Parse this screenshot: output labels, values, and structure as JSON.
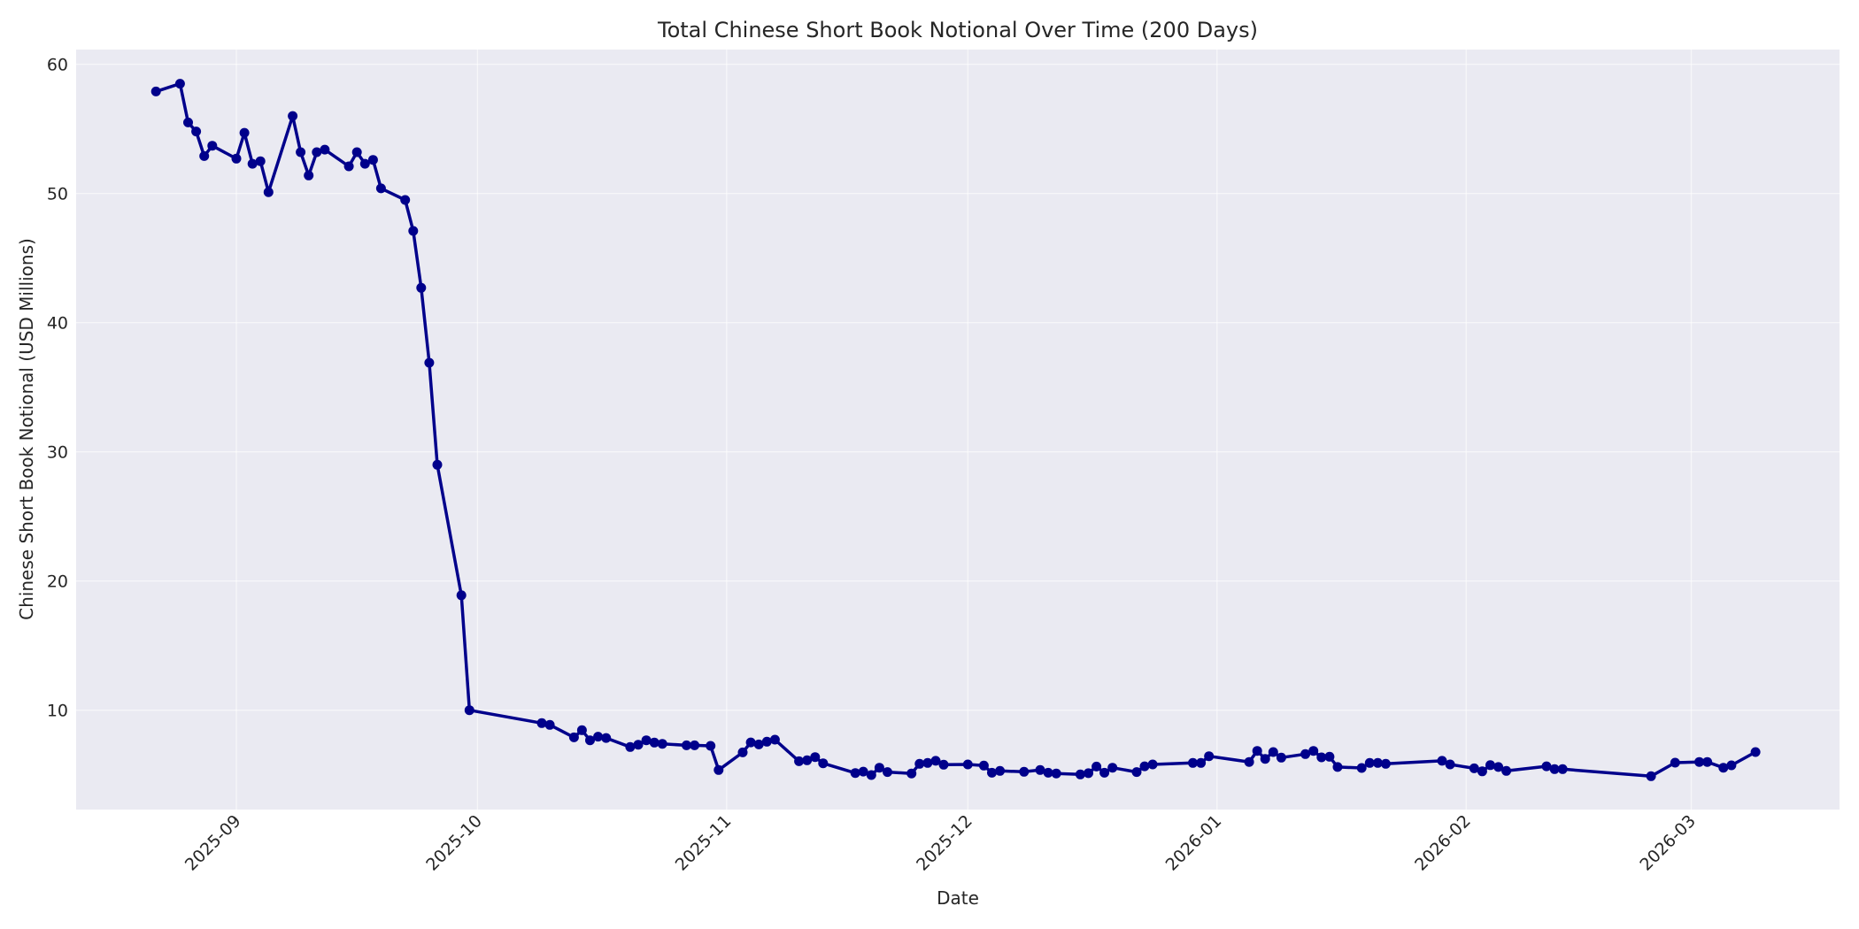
{
  "chart_data": {
    "type": "line",
    "title": "Total Chinese Short Book Notional Over Time (200 Days)",
    "xlabel": "Date",
    "ylabel": "Chinese Short Book Notional (USD Millions)",
    "ylim": [
      2.3,
      61.1
    ],
    "xlim": [
      "2025-08-12",
      "2026-03-19"
    ],
    "yticks": [
      10,
      20,
      30,
      40,
      50,
      60
    ],
    "xticks": [
      "2025-09",
      "2025-10",
      "2025-11",
      "2025-12",
      "2026-01",
      "2026-02",
      "2026-03"
    ],
    "xtick_dates": [
      "2025-09-01",
      "2025-10-01",
      "2025-11-01",
      "2025-12-01",
      "2026-01-01",
      "2026-02-01",
      "2026-03-01"
    ],
    "grid": true,
    "legend": null,
    "colors": {
      "line": "#00008b",
      "plot_bg": "#eaeaf2",
      "grid": "#ffffff"
    },
    "series": [
      {
        "name": "Chinese Short Book Notional",
        "points": [
          [
            "2025-08-22",
            57.9
          ],
          [
            "2025-08-25",
            58.5
          ],
          [
            "2025-08-26",
            55.5
          ],
          [
            "2025-08-27",
            54.8
          ],
          [
            "2025-08-28",
            52.9
          ],
          [
            "2025-08-29",
            53.7
          ],
          [
            "2025-09-01",
            52.7
          ],
          [
            "2025-09-02",
            54.7
          ],
          [
            "2025-09-03",
            52.3
          ],
          [
            "2025-09-04",
            52.5
          ],
          [
            "2025-09-05",
            50.1
          ],
          [
            "2025-09-08",
            56.0
          ],
          [
            "2025-09-09",
            53.2
          ],
          [
            "2025-09-10",
            51.4
          ],
          [
            "2025-09-11",
            53.2
          ],
          [
            "2025-09-12",
            53.4
          ],
          [
            "2025-09-15",
            52.1
          ],
          [
            "2025-09-16",
            53.2
          ],
          [
            "2025-09-17",
            52.3
          ],
          [
            "2025-09-18",
            52.6
          ],
          [
            "2025-09-19",
            50.4
          ],
          [
            "2025-09-22",
            49.5
          ],
          [
            "2025-09-23",
            47.1
          ],
          [
            "2025-09-24",
            42.7
          ],
          [
            "2025-09-25",
            36.9
          ],
          [
            "2025-09-26",
            29.0
          ],
          [
            "2025-09-29",
            18.9
          ],
          [
            "2025-09-30",
            10.0
          ],
          [
            "2025-10-09",
            9.0
          ],
          [
            "2025-10-10",
            8.86
          ],
          [
            "2025-10-13",
            7.9
          ],
          [
            "2025-10-14",
            8.45
          ],
          [
            "2025-10-15",
            7.67
          ],
          [
            "2025-10-16",
            7.95
          ],
          [
            "2025-10-17",
            7.85
          ],
          [
            "2025-10-20",
            7.15
          ],
          [
            "2025-10-21",
            7.33
          ],
          [
            "2025-10-22",
            7.67
          ],
          [
            "2025-10-23",
            7.49
          ],
          [
            "2025-10-24",
            7.4
          ],
          [
            "2025-10-27",
            7.28
          ],
          [
            "2025-10-28",
            7.28
          ],
          [
            "2025-10-30",
            7.24
          ],
          [
            "2025-10-31",
            5.37
          ],
          [
            "2025-11-03",
            6.73
          ],
          [
            "2025-11-04",
            7.51
          ],
          [
            "2025-11-05",
            7.35
          ],
          [
            "2025-11-06",
            7.56
          ],
          [
            "2025-11-07",
            7.72
          ],
          [
            "2025-11-10",
            6.05
          ],
          [
            "2025-11-11",
            6.12
          ],
          [
            "2025-11-12",
            6.37
          ],
          [
            "2025-11-13",
            5.89
          ],
          [
            "2025-11-17",
            5.14
          ],
          [
            "2025-11-18",
            5.25
          ],
          [
            "2025-11-19",
            4.98
          ],
          [
            "2025-11-20",
            5.55
          ],
          [
            "2025-11-21",
            5.21
          ],
          [
            "2025-11-24",
            5.1
          ],
          [
            "2025-11-25",
            5.85
          ],
          [
            "2025-11-26",
            5.92
          ],
          [
            "2025-11-27",
            6.08
          ],
          [
            "2025-11-28",
            5.78
          ],
          [
            "2025-12-01",
            5.8
          ],
          [
            "2025-12-03",
            5.71
          ],
          [
            "2025-12-04",
            5.16
          ],
          [
            "2025-12-05",
            5.3
          ],
          [
            "2025-12-08",
            5.23
          ],
          [
            "2025-12-10",
            5.37
          ],
          [
            "2025-12-11",
            5.16
          ],
          [
            "2025-12-12",
            5.1
          ],
          [
            "2025-12-15",
            5.03
          ],
          [
            "2025-12-16",
            5.12
          ],
          [
            "2025-12-17",
            5.64
          ],
          [
            "2025-12-18",
            5.16
          ],
          [
            "2025-12-19",
            5.55
          ],
          [
            "2025-12-22",
            5.21
          ],
          [
            "2025-12-23",
            5.66
          ],
          [
            "2025-12-24",
            5.8
          ],
          [
            "2025-12-29",
            5.92
          ],
          [
            "2025-12-30",
            5.92
          ],
          [
            "2025-12-31",
            6.44
          ],
          [
            "2026-01-05",
            5.99
          ],
          [
            "2026-01-06",
            6.85
          ],
          [
            "2026-01-07",
            6.23
          ],
          [
            "2026-01-08",
            6.76
          ],
          [
            "2026-01-09",
            6.33
          ],
          [
            "2026-01-12",
            6.6
          ],
          [
            "2026-01-13",
            6.85
          ],
          [
            "2026-01-14",
            6.35
          ],
          [
            "2026-01-15",
            6.4
          ],
          [
            "2026-01-16",
            5.6
          ],
          [
            "2026-01-19",
            5.53
          ],
          [
            "2026-01-20",
            5.92
          ],
          [
            "2026-01-21",
            5.92
          ],
          [
            "2026-01-22",
            5.85
          ],
          [
            "2026-01-29",
            6.08
          ],
          [
            "2026-01-30",
            5.8
          ],
          [
            "2026-02-02",
            5.5
          ],
          [
            "2026-02-03",
            5.27
          ],
          [
            "2026-02-04",
            5.75
          ],
          [
            "2026-02-05",
            5.6
          ],
          [
            "2026-02-06",
            5.3
          ],
          [
            "2026-02-11",
            5.66
          ],
          [
            "2026-02-12",
            5.44
          ],
          [
            "2026-02-13",
            5.44
          ],
          [
            "2026-02-24",
            4.89
          ],
          [
            "2026-02-27",
            5.94
          ],
          [
            "2026-03-02",
            5.99
          ],
          [
            "2026-03-03",
            5.99
          ],
          [
            "2026-03-05",
            5.55
          ],
          [
            "2026-03-06",
            5.73
          ],
          [
            "2026-03-09",
            6.76
          ]
        ]
      }
    ]
  }
}
